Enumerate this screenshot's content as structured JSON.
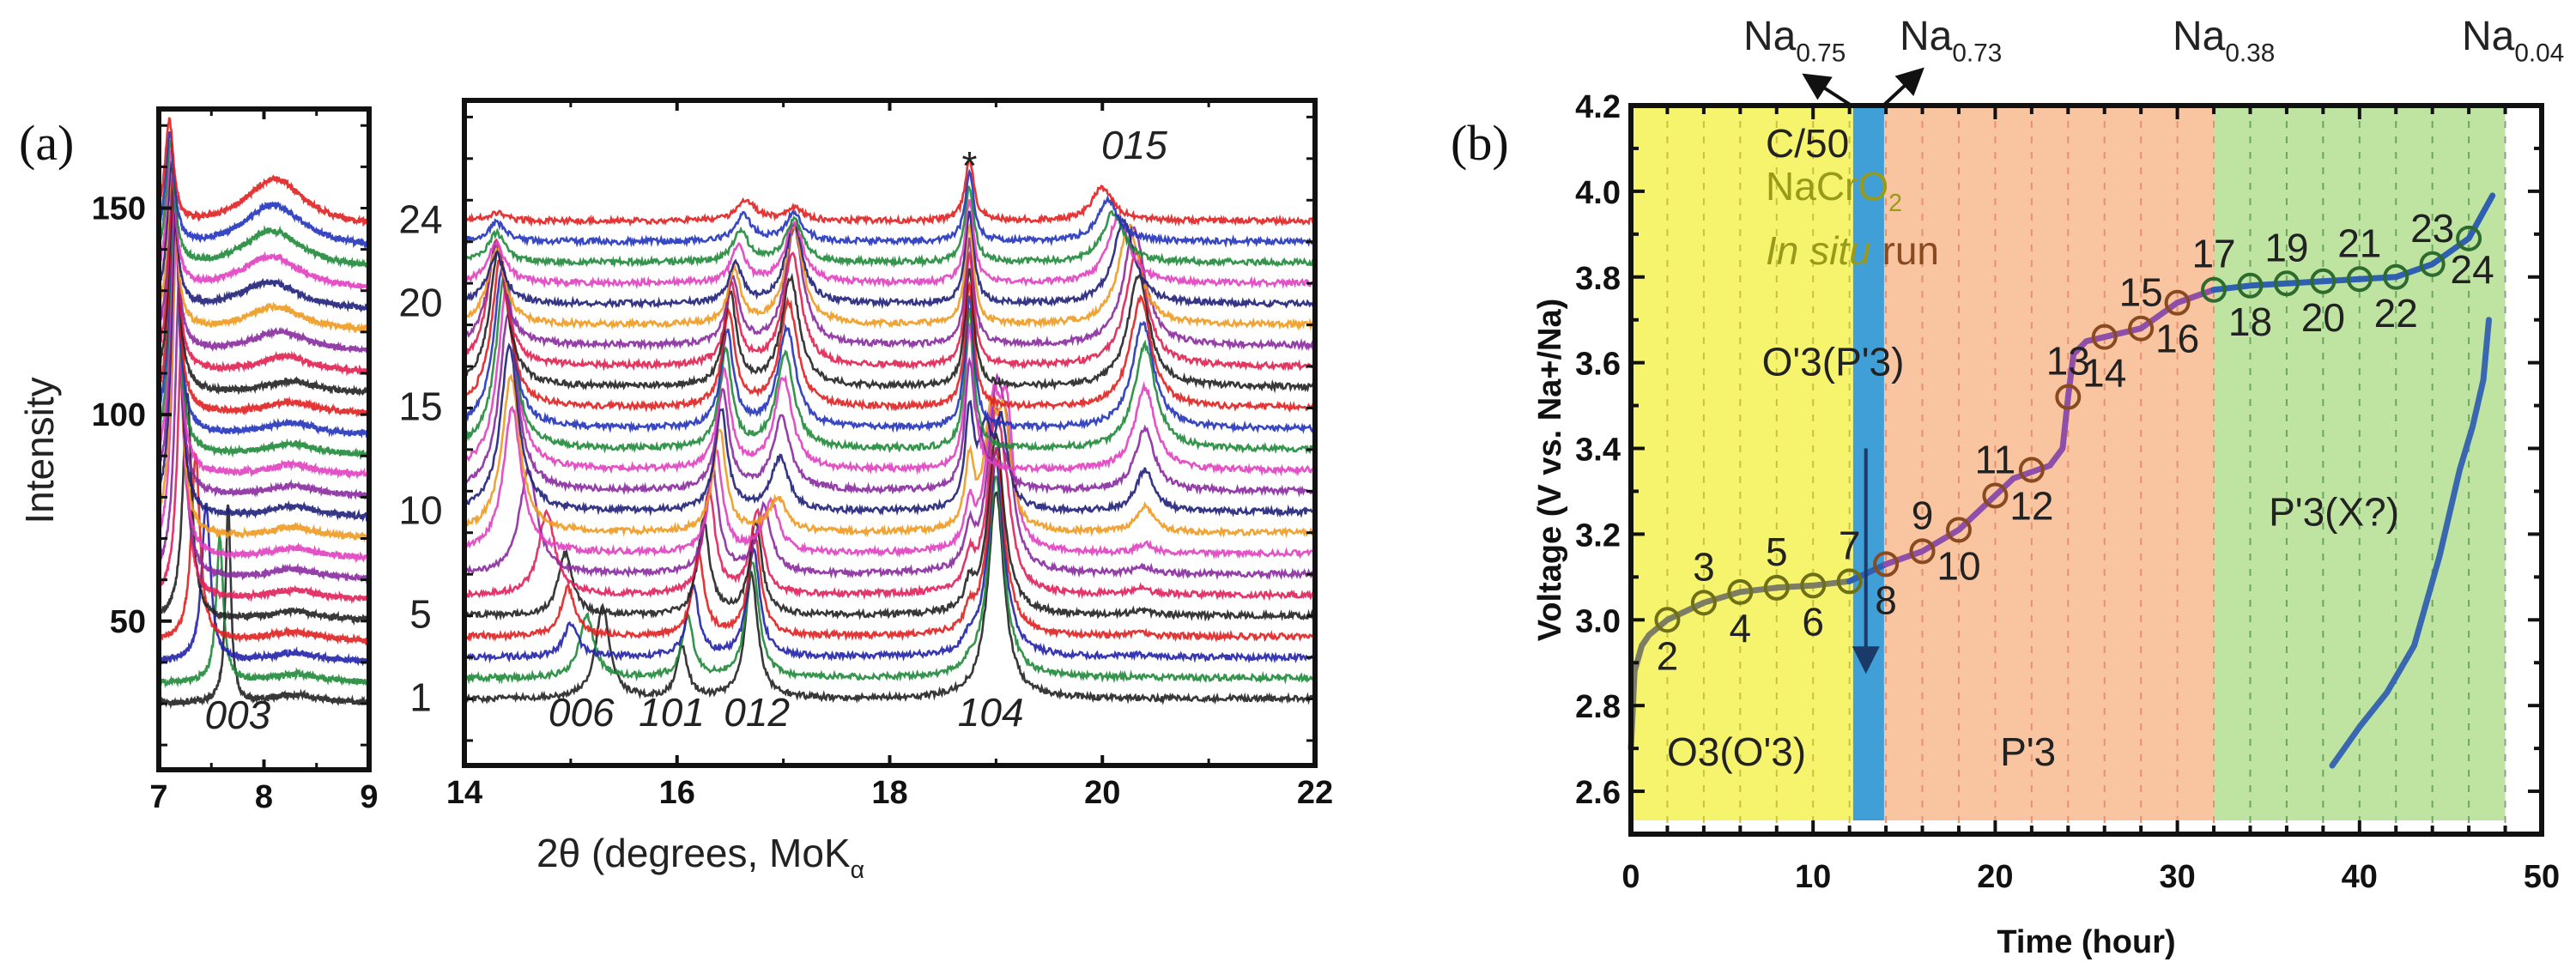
{
  "panel_labels": {
    "a": "(a)",
    "b": "(b)"
  },
  "chart_data": [
    {
      "type": "line",
      "panel": "(a)",
      "title": "",
      "ylabel": "Intensity",
      "xlabel": "2θ (degrees, MoK",
      "xlabel_sub": "α",
      "ylim": [
        14,
        174
      ],
      "baseline_start": 30,
      "baseline_step": 5,
      "scan_count": 24,
      "scan_labels": [
        {
          "text": "24",
          "scan": 24
        },
        {
          "text": "20",
          "scan": 20
        },
        {
          "text": "15",
          "scan": 15
        },
        {
          "text": "10",
          "scan": 10
        },
        {
          "text": "5",
          "scan": 5
        },
        {
          "text": "1",
          "scan": 1
        }
      ],
      "series_colors": [
        "#222222",
        "#1f8a3a",
        "#2222aa",
        "#e02020",
        "#222222",
        "#e0205a",
        "#8a2aa0",
        "#e040c0",
        "#f09a20",
        "#20207a",
        "#8a2aa0",
        "#e040c0",
        "#1f8a3a",
        "#2233bb",
        "#e02020",
        "#222222",
        "#e02050",
        "#8a2aa0",
        "#f09a20",
        "#20207a",
        "#e040c0",
        "#1f8a3a",
        "#2233bb",
        "#e02020"
      ],
      "left_axis": {
        "xlim": [
          7,
          9
        ],
        "xticks": [
          "7",
          "8",
          "9"
        ],
        "yticks": [
          "50",
          "100",
          "150"
        ],
        "reflection_labels": [
          {
            "text": "003",
            "x": 7.75,
            "y": 24
          }
        ],
        "peak_tracks": [
          {
            "name": "003",
            "keys": [
              [
                1,
                7.66,
                48,
                0.03
              ],
              [
                2,
                7.58,
                35,
                0.04
              ],
              [
                3,
                7.45,
                38,
                0.05
              ],
              [
                4,
                7.35,
                45,
                0.05
              ],
              [
                5,
                7.27,
                55,
                0.05
              ],
              [
                6,
                7.22,
                65,
                0.05
              ],
              [
                8,
                7.17,
                80,
                0.05
              ],
              [
                12,
                7.15,
                70,
                0.05
              ],
              [
                16,
                7.14,
                55,
                0.05
              ],
              [
                20,
                7.12,
                35,
                0.05
              ],
              [
                24,
                7.1,
                25,
                0.05
              ]
            ]
          },
          {
            "name": "hump",
            "keys": [
              [
                1,
                8.3,
                2,
                0.3
              ],
              [
                16,
                8.25,
                3,
                0.3
              ],
              [
                20,
                8.05,
                7,
                0.35
              ],
              [
                24,
                8.1,
                12,
                0.35
              ]
            ]
          }
        ]
      },
      "right_axis": {
        "xlim": [
          14,
          22
        ],
        "xticks": [
          "14",
          "16",
          "18",
          "20",
          "22"
        ],
        "reflection_labels": [
          {
            "text": "006",
            "x": 15.1,
            "y": 23.5
          },
          {
            "text": "101",
            "x": 15.95,
            "y": 23.5
          },
          {
            "text": "012",
            "x": 16.75,
            "y": 23.5
          },
          {
            "text": "104",
            "x": 18.95,
            "y": 23.5
          },
          {
            "text": "015",
            "x": 20.3,
            "y": 160
          },
          {
            "text": "*",
            "x": 18.75,
            "y": 155
          }
        ],
        "peak_tracks": [
          {
            "name": "006",
            "keys": [
              [
                1,
                15.3,
                22,
                0.08
              ],
              [
                3,
                15.0,
                8,
                0.08
              ],
              [
                5,
                14.95,
                15,
                0.08
              ],
              [
                7,
                14.6,
                25,
                0.1
              ],
              [
                8,
                14.45,
                35,
                0.1
              ],
              [
                12,
                14.4,
                45,
                0.1
              ],
              [
                17,
                14.3,
                30,
                0.1
              ],
              [
                20,
                14.3,
                12,
                0.1
              ],
              [
                24,
                14.3,
                2,
                0.1
              ]
            ]
          },
          {
            "name": "101",
            "keys": [
              [
                1,
                16.05,
                12,
                0.06
              ],
              [
                6,
                16.3,
                25,
                0.07
              ],
              [
                9,
                16.4,
                25,
                0.07
              ],
              [
                16,
                16.5,
                22,
                0.07
              ],
              [
                20,
                16.55,
                10,
                0.07
              ],
              [
                24,
                16.65,
                5,
                0.1
              ]
            ]
          },
          {
            "name": "012",
            "keys": [
              [
                1,
                16.7,
                30,
                0.07
              ],
              [
                6,
                16.75,
                20,
                0.07
              ],
              [
                9,
                16.95,
                8,
                0.1
              ],
              [
                12,
                17.0,
                22,
                0.1
              ],
              [
                18,
                17.1,
                28,
                0.1
              ],
              [
                22,
                17.1,
                10,
                0.1
              ],
              [
                24,
                17.1,
                3,
                0.1
              ]
            ]
          },
          {
            "name": "*",
            "keys": [
              [
                1,
                18.75,
                0,
                0.05
              ],
              [
                8,
                18.75,
                10,
                0.05
              ],
              [
                12,
                18.75,
                35,
                0.05
              ],
              [
                24,
                18.75,
                15,
                0.05
              ]
            ]
          },
          {
            "name": "104",
            "keys": [
              [
                1,
                19.0,
                50,
                0.09
              ],
              [
                7,
                19.0,
                40,
                0.09
              ],
              [
                9,
                18.95,
                25,
                0.07
              ],
              [
                11,
                18.85,
                8,
                0.07
              ],
              [
                12,
                18.85,
                0,
                0.07
              ]
            ]
          },
          {
            "name": "104b",
            "keys": [
              [
                5,
                19.1,
                0,
                0.07
              ],
              [
                8,
                19.1,
                30,
                0.07
              ],
              [
                10,
                19.05,
                20,
                0.07
              ],
              [
                12,
                19.05,
                0,
                0.07
              ]
            ]
          },
          {
            "name": "015",
            "keys": [
              [
                1,
                20.3,
                0,
                0.1
              ],
              [
                8,
                20.4,
                2,
                0.1
              ],
              [
                10,
                20.4,
                10,
                0.1
              ],
              [
                13,
                20.4,
                25,
                0.12
              ],
              [
                18,
                20.3,
                28,
                0.12
              ],
              [
                22,
                20.1,
                12,
                0.12
              ],
              [
                24,
                20.0,
                8,
                0.12
              ]
            ]
          }
        ]
      }
    },
    {
      "type": "line",
      "panel": "(b)",
      "title": "",
      "xlabel": "Time (hour)",
      "ylabel": "Voltage (V vs. Na+/Na)",
      "xlim": [
        0,
        50
      ],
      "ylim": [
        2.5,
        4.2
      ],
      "xticks": [
        "0",
        "10",
        "20",
        "30",
        "40",
        "50"
      ],
      "yticks": [
        "2.6",
        "2.8",
        "3.0",
        "3.2",
        "3.4",
        "3.6",
        "3.8",
        "4.0",
        "4.2"
      ],
      "phase_regions": [
        {
          "label": "O3(O'3)",
          "from": 0,
          "to": 12.2,
          "color": "#f6f46c",
          "line": "#c9c040"
        },
        {
          "label": "O'3(P'3)",
          "from": 12.2,
          "to": 13.9,
          "color": "#3f9fd6",
          "line": "#3f9fd6"
        },
        {
          "label": "P'3",
          "from": 13.9,
          "to": 32,
          "color": "#f9c4a0",
          "line": "#e89070"
        },
        {
          "label": "P'3(X?)",
          "from": 32,
          "to": 48,
          "color": "#bfe4a2",
          "line": "#6aa860"
        }
      ],
      "composition_labels": [
        {
          "base": "Na",
          "sub": "0.75"
        },
        {
          "base": "Na",
          "sub": "0.73"
        },
        {
          "base": "Na",
          "sub": "0.38"
        },
        {
          "base": "Na",
          "sub": "0.04"
        }
      ],
      "annotations": {
        "rate": "C/50",
        "compound": "NaCrO",
        "compound_sub": "2",
        "run_italic": "In situ",
        "run": " run"
      },
      "series": [
        {
          "name": "charge",
          "segments": [
            {
              "color": "#7d7d66",
              "points": [
                [
                  0,
                  2.7
                ],
                [
                  0.2,
                  2.88
                ],
                [
                  0.6,
                  2.94
                ],
                [
                  1,
                  2.965
                ],
                [
                  2,
                  3.0
                ],
                [
                  4,
                  3.04
                ],
                [
                  6,
                  3.065
                ],
                [
                  8,
                  3.075
                ],
                [
                  10,
                  3.08
                ],
                [
                  12,
                  3.09
                ]
              ]
            },
            {
              "color": "#2f5fb0",
              "points": [
                [
                  12,
                  3.09
                ],
                [
                  13,
                  3.11
                ],
                [
                  14,
                  3.13
                ]
              ]
            },
            {
              "color": "#8e4fa8",
              "points": [
                [
                  14,
                  3.13
                ],
                [
                  16,
                  3.16
                ],
                [
                  18,
                  3.21
                ],
                [
                  20,
                  3.29
                ],
                [
                  21,
                  3.33
                ],
                [
                  22,
                  3.345
                ],
                [
                  23,
                  3.36
                ],
                [
                  23.7,
                  3.4
                ],
                [
                  24,
                  3.52
                ],
                [
                  24.3,
                  3.62
                ],
                [
                  25,
                  3.65
                ],
                [
                  26,
                  3.66
                ],
                [
                  28,
                  3.68
                ],
                [
                  30,
                  3.74
                ],
                [
                  32,
                  3.77
                ]
              ]
            },
            {
              "color": "#2f5fb0",
              "points": [
                [
                  32,
                  3.77
                ],
                [
                  34,
                  3.78
                ],
                [
                  36,
                  3.785
                ],
                [
                  38,
                  3.79
                ],
                [
                  40,
                  3.795
                ],
                [
                  42,
                  3.8
                ],
                [
                  44,
                  3.83
                ],
                [
                  46,
                  3.89
                ],
                [
                  47.3,
                  3.99
                ]
              ]
            }
          ]
        },
        {
          "name": "second-curve",
          "segments": [
            {
              "color": "#3a68b0",
              "points": [
                [
                  38.5,
                  2.66
                ],
                [
                  40,
                  2.75
                ],
                [
                  41.5,
                  2.83
                ],
                [
                  43,
                  2.94
                ],
                [
                  44.4,
                  3.15
                ],
                [
                  45.5,
                  3.35
                ],
                [
                  46.2,
                  3.45
                ],
                [
                  46.8,
                  3.56
                ],
                [
                  47.1,
                  3.7
                ]
              ]
            }
          ]
        }
      ],
      "scan_points": [
        {
          "n": "2",
          "t": 2,
          "v": 3.0,
          "color": "#6f6f18"
        },
        {
          "n": "3",
          "t": 4,
          "v": 3.04,
          "color": "#6f6f18"
        },
        {
          "n": "4",
          "t": 6,
          "v": 3.065,
          "color": "#6f6f18"
        },
        {
          "n": "5",
          "t": 8,
          "v": 3.075,
          "color": "#6f6f18"
        },
        {
          "n": "6",
          "t": 10,
          "v": 3.08,
          "color": "#6f6f18"
        },
        {
          "n": "7",
          "t": 12,
          "v": 3.09,
          "color": "#6f6f18"
        },
        {
          "n": "8",
          "t": 14,
          "v": 3.13,
          "color": "#8a4a20"
        },
        {
          "n": "9",
          "t": 16,
          "v": 3.16,
          "color": "#8a4a20"
        },
        {
          "n": "10",
          "t": 18,
          "v": 3.21,
          "color": "#8a4a20"
        },
        {
          "n": "11",
          "t": 20,
          "v": 3.29,
          "color": "#8a4a20"
        },
        {
          "n": "12",
          "t": 22,
          "v": 3.35,
          "color": "#8a4a20"
        },
        {
          "n": "13",
          "t": 24,
          "v": 3.52,
          "color": "#8a4a20"
        },
        {
          "n": "14",
          "t": 26,
          "v": 3.66,
          "color": "#8a4a20"
        },
        {
          "n": "15",
          "t": 28,
          "v": 3.68,
          "color": "#8a4a20"
        },
        {
          "n": "16",
          "t": 30,
          "v": 3.74,
          "color": "#8a4a20"
        },
        {
          "n": "17",
          "t": 32,
          "v": 3.77,
          "color": "#2e6b2e"
        },
        {
          "n": "18",
          "t": 34,
          "v": 3.78,
          "color": "#2e6b2e"
        },
        {
          "n": "19",
          "t": 36,
          "v": 3.785,
          "color": "#2e6b2e"
        },
        {
          "n": "20",
          "t": 38,
          "v": 3.79,
          "color": "#2e6b2e"
        },
        {
          "n": "21",
          "t": 40,
          "v": 3.795,
          "color": "#2e6b2e"
        },
        {
          "n": "22",
          "t": 42,
          "v": 3.8,
          "color": "#2e6b2e"
        },
        {
          "n": "23",
          "t": 44,
          "v": 3.83,
          "color": "#2e6b2e"
        },
        {
          "n": "24",
          "t": 46,
          "v": 3.89,
          "color": "#2e6b2e"
        }
      ]
    }
  ]
}
